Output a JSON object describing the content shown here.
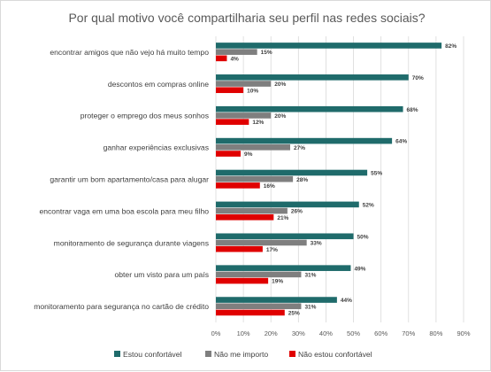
{
  "chart_data": {
    "type": "bar",
    "orientation": "horizontal",
    "title": "Por qual motivo você compartilharia seu perfil nas redes sociais?",
    "categories": [
      "encontrar amigos que não vejo há muito tempo",
      "descontos em compras online",
      "proteger o emprego dos meus sonhos",
      "ganhar experiências exclusivas",
      "garantir um bom apartamento/casa para alugar",
      "encontrar vaga em uma boa escola para meu filho",
      "monitoramento de segurança durante viagens",
      "obter um visto para um país",
      "monitoramento para segurança no cartão de crédito"
    ],
    "series": [
      {
        "name": "Estou confortável",
        "color": "#1f6b6b",
        "values": [
          82,
          70,
          68,
          64,
          55,
          52,
          50,
          49,
          44
        ]
      },
      {
        "name": "Não me importo",
        "color": "#7f7f7f",
        "values": [
          15,
          20,
          20,
          27,
          28,
          26,
          33,
          31,
          31
        ]
      },
      {
        "name": "Não estou confortável",
        "color": "#e00000",
        "values": [
          4,
          10,
          12,
          9,
          16,
          21,
          17,
          19,
          25
        ]
      }
    ],
    "xlim": [
      0,
      90
    ],
    "xticks": [
      "0%",
      "10%",
      "20%",
      "30%",
      "40%",
      "50%",
      "60%",
      "70%",
      "80%",
      "90%"
    ],
    "value_suffix": "%",
    "grid": true,
    "legend_position": "bottom"
  }
}
